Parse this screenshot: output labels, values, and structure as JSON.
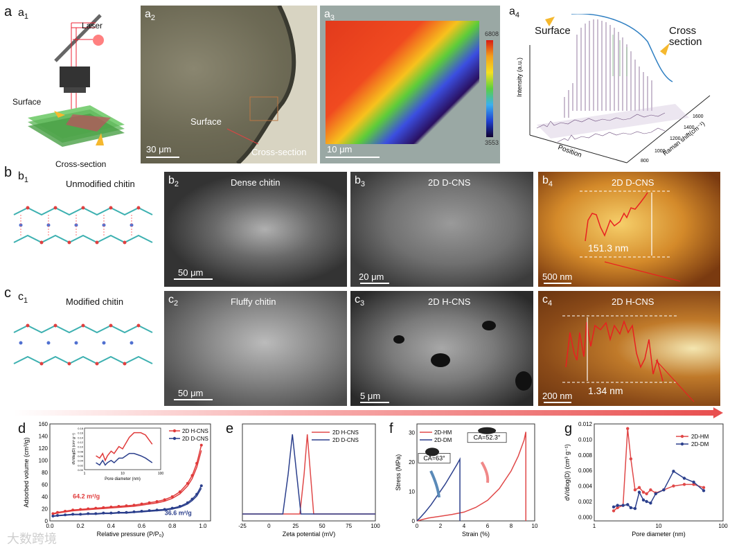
{
  "figure": {
    "labels": {
      "a": "a",
      "a1": "a",
      "a2": "a",
      "a3": "a",
      "a4": "a",
      "b": "b",
      "b1": "b",
      "b2": "b",
      "b3": "b",
      "b4": "b",
      "c": "c",
      "c1": "c",
      "c2": "c",
      "c3": "c",
      "c4": "c",
      "d": "d",
      "e": "e",
      "f": "f",
      "g": "g",
      "sub1": "1",
      "sub2": "2",
      "sub3": "3",
      "sub4": "4"
    },
    "a1": {
      "laser": "Laser",
      "surface": "Surface",
      "cross": "Cross-section"
    },
    "a2": {
      "surface": "Surface",
      "cross": "Cross-section",
      "scale": "30 μm"
    },
    "a3": {
      "scale": "10 μm",
      "cbar_max": "6808",
      "cbar_min": "3553"
    },
    "a4": {
      "surface": "Surface",
      "cross1": "Cross",
      "cross2": "section",
      "ylabel": "Intensity (a.u.)",
      "xlabel": "Position",
      "zlabel": "Raman shift(cm⁻¹)",
      "ticks": [
        "800",
        "1000",
        "1200",
        "1400",
        "1600"
      ]
    },
    "b1": {
      "title": "Unmodified chitin"
    },
    "b2": {
      "title": "Dense chitin",
      "scale": "50 μm"
    },
    "b3": {
      "title": "2D D-CNS",
      "scale": "20 μm"
    },
    "b4": {
      "title": "2D D-CNS",
      "height": "151.3 nm",
      "scale": "500 nm"
    },
    "c1": {
      "title": "Modified chitin"
    },
    "c2": {
      "title": "Fluffy chitin",
      "scale": "50 μm"
    },
    "c3": {
      "title": "2D H-CNS",
      "scale": "5 μm"
    },
    "c4": {
      "title": "2D H-CNS",
      "height": "1.34 nm",
      "scale": "200 nm"
    },
    "watermark": "大数跨境"
  },
  "chart_data": [
    {
      "id": "d",
      "type": "line",
      "xlabel": "Relative pressure (P/P₀)",
      "ylabel": "Adsorbed volume (cm³/g)",
      "xlim": [
        0,
        1.05
      ],
      "ylim": [
        0,
        160
      ],
      "xticks": [
        "0.0",
        "0.2",
        "0.4",
        "0.6",
        "0.8",
        "1.0"
      ],
      "yticks": [
        "0",
        "20",
        "40",
        "60",
        "80",
        "100",
        "120",
        "140",
        "160"
      ],
      "annotations": [
        "64.2 m²/g",
        "36.6 m²/g"
      ],
      "series": [
        {
          "name": "2D H-CNS",
          "color": "#e03a3a",
          "x": [
            0.02,
            0.05,
            0.1,
            0.15,
            0.2,
            0.25,
            0.3,
            0.35,
            0.4,
            0.45,
            0.5,
            0.55,
            0.6,
            0.65,
            0.7,
            0.75,
            0.8,
            0.85,
            0.9,
            0.93,
            0.96,
            0.99
          ],
          "y": [
            12,
            14,
            16,
            18,
            19,
            20,
            21,
            22,
            23,
            24,
            25,
            26,
            28,
            30,
            32,
            35,
            40,
            48,
            62,
            75,
            95,
            125
          ]
        },
        {
          "name": "2D D-CNS",
          "color": "#2b3f8c",
          "x": [
            0.02,
            0.05,
            0.1,
            0.15,
            0.2,
            0.25,
            0.3,
            0.35,
            0.4,
            0.45,
            0.5,
            0.55,
            0.6,
            0.65,
            0.7,
            0.75,
            0.8,
            0.85,
            0.9,
            0.93,
            0.96,
            0.99
          ],
          "y": [
            8,
            9,
            10,
            11,
            11,
            12,
            12,
            13,
            13,
            14,
            14,
            15,
            16,
            17,
            18,
            19,
            21,
            24,
            30,
            36,
            44,
            58
          ]
        }
      ],
      "inset": {
        "xlabel": "Pore diameter (nm)",
        "ylabel": "dV/dlog(D) (cm³ g⁻¹)",
        "xticks": [
          "1",
          "10",
          "100"
        ],
        "yticks": [
          "0.00",
          "0.02",
          "0.04",
          "0.06",
          "0.08",
          "0.10",
          "0.12",
          "0.14",
          "0.16",
          "0.18"
        ],
        "series": [
          {
            "name": "2D H-CNS",
            "color": "#e03a3a",
            "x": [
              2,
              2.5,
              3,
              3.5,
              4,
              5,
              6,
              8,
              10,
              15,
              20,
              30,
              40,
              60
            ],
            "y": [
              0.06,
              0.05,
              0.07,
              0.04,
              0.06,
              0.08,
              0.07,
              0.1,
              0.09,
              0.14,
              0.16,
              0.16,
              0.15,
              0.11
            ]
          },
          {
            "name": "2D D-CNS",
            "color": "#2b3f8c",
            "x": [
              2,
              2.5,
              3,
              3.5,
              4,
              5,
              6,
              8,
              10,
              15,
              20,
              30,
              40,
              60
            ],
            "y": [
              0.03,
              0.02,
              0.04,
              0.02,
              0.03,
              0.04,
              0.03,
              0.05,
              0.05,
              0.07,
              0.07,
              0.06,
              0.05,
              0.03
            ]
          }
        ]
      }
    },
    {
      "id": "e",
      "type": "line",
      "xlabel": "Zeta potential (mV)",
      "xlim": [
        -25,
        100
      ],
      "xticks": [
        "-25",
        "0",
        "25",
        "50",
        "75",
        "100"
      ],
      "series": [
        {
          "name": "2D H-CNS",
          "color": "#e04848",
          "x": [
            -25,
            29,
            33,
            36,
            39,
            42,
            100
          ],
          "y": [
            0,
            0,
            0.5,
            1,
            0.5,
            0,
            0
          ]
        },
        {
          "name": "2D D-CNS",
          "color": "#2b3f8c",
          "x": [
            -25,
            13,
            18,
            22,
            26,
            30,
            100
          ],
          "y": [
            0,
            0,
            0.5,
            1,
            0.5,
            0,
            0
          ]
        }
      ]
    },
    {
      "id": "f",
      "type": "line",
      "xlabel": "Strain (%)",
      "ylabel": "Stress (MPa)",
      "xlim": [
        0,
        10
      ],
      "ylim": [
        0,
        33
      ],
      "xticks": [
        "0",
        "2",
        "4",
        "6",
        "8",
        "10"
      ],
      "yticks": [
        "0",
        "10",
        "20",
        "30"
      ],
      "annotations": [
        "CA=63°",
        "CA=52.3°"
      ],
      "series": [
        {
          "name": "2D-HM",
          "color": "#e04848",
          "x": [
            0,
            1,
            2,
            3,
            4,
            5,
            6,
            7,
            8,
            8.6,
            9.1,
            9.25,
            9.25
          ],
          "y": [
            0,
            1,
            1.6,
            2.2,
            3,
            4.6,
            7,
            11,
            17,
            22,
            27.5,
            30.3,
            0
          ]
        },
        {
          "name": "2D-DM",
          "color": "#2b3f8c",
          "x": [
            0,
            0.3,
            0.7,
            1.2,
            1.8,
            2.4,
            3,
            3.4,
            3.65,
            3.65
          ],
          "y": [
            0,
            1.2,
            3,
            5.5,
            9,
            12.5,
            16.5,
            19.2,
            21,
            0
          ]
        }
      ]
    },
    {
      "id": "g",
      "type": "line",
      "xlabel": "Pore diameter (nm)",
      "ylabel": "dV/dlog(D) (cm³ g⁻¹)",
      "xlim": [
        1,
        100
      ],
      "ylim": [
        -0.0005,
        0.012
      ],
      "xticks": [
        "1",
        "10",
        "100"
      ],
      "yticks": [
        "0.000",
        "0.002",
        "0.004",
        "0.006",
        "0.008",
        "0.010",
        "0.012"
      ],
      "series": [
        {
          "name": "2D-HM",
          "color": "#e04848",
          "x": [
            2,
            2.3,
            2.8,
            3.3,
            3.7,
            4.3,
            5,
            5.8,
            6.5,
            7.5,
            9,
            12,
            17,
            25,
            35,
            50
          ],
          "y": [
            0.0008,
            0.0012,
            0.0015,
            0.0114,
            0.0075,
            0.0035,
            0.0038,
            0.0032,
            0.003,
            0.0035,
            0.0031,
            0.0035,
            0.004,
            0.0042,
            0.0042,
            0.0038
          ]
        },
        {
          "name": "2D-DM",
          "color": "#2b3f8c",
          "x": [
            2,
            2.3,
            2.8,
            3.3,
            3.7,
            4.3,
            5,
            5.8,
            6.5,
            7.5,
            9,
            12,
            17,
            25,
            35,
            50
          ],
          "y": [
            0.0013,
            0.0015,
            0.0015,
            0.0016,
            0.0012,
            0.0011,
            0.0032,
            0.0022,
            0.002,
            0.0018,
            0.003,
            0.0035,
            0.0059,
            0.005,
            0.0045,
            0.0034
          ]
        }
      ]
    }
  ]
}
